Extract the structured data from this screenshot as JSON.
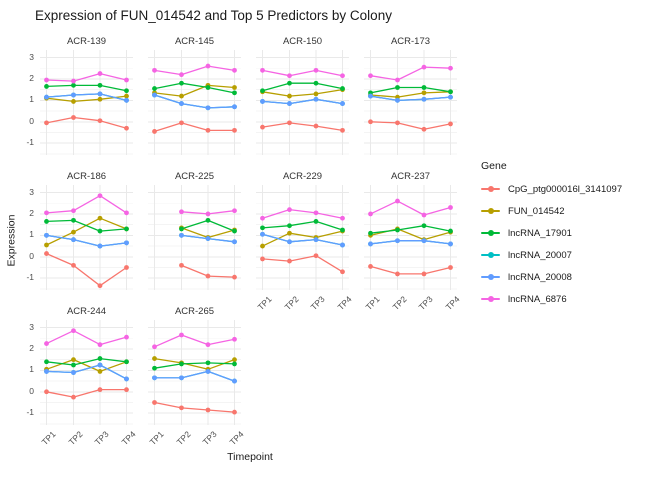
{
  "title": "Expression of FUN_014542 and Top 5 Predictors by Colony",
  "axes": {
    "x_label": "Timepoint",
    "y_label": "Expression",
    "x_ticks": [
      "TP1",
      "TP2",
      "TP3",
      "TP4"
    ],
    "y_ticks": [
      3,
      2,
      1,
      0,
      -1
    ]
  },
  "legend": {
    "title": "Gene"
  },
  "chart_data": {
    "type": "line",
    "title": "Expression of FUN_014542 and Top 5 Predictors by Colony",
    "xlabel": "Timepoint",
    "ylabel": "Expression",
    "x": [
      "TP1",
      "TP2",
      "TP3",
      "TP4"
    ],
    "ylim": [
      -1.55,
      3.35
    ],
    "grid": "on",
    "legend_position": "right",
    "genes": [
      {
        "name": "CpG_ptg000016l_3141097",
        "color": "#F8766D"
      },
      {
        "name": "FUN_014542",
        "color": "#B79F00"
      },
      {
        "name": "lncRNA_17901",
        "color": "#00BA38"
      },
      {
        "name": "lncRNA_20007",
        "color": "#00BFC4"
      },
      {
        "name": "lncRNA_20008",
        "color": "#619CFF"
      },
      {
        "name": "lncRNA_6876",
        "color": "#F564E3"
      }
    ],
    "facets": [
      {
        "colony": "ACR-139",
        "series": [
          {
            "name": "CpG_ptg000016l_3141097",
            "values": [
              -0.05,
              0.2,
              0.05,
              -0.3
            ]
          },
          {
            "name": "FUN_014542",
            "values": [
              1.1,
              0.95,
              1.05,
              1.2
            ]
          },
          {
            "name": "lncRNA_17901",
            "values": [
              1.65,
              1.7,
              1.7,
              1.45
            ]
          },
          {
            "name": "lncRNA_20007",
            "values": [
              1.15,
              1.25,
              1.3,
              1.0
            ]
          },
          {
            "name": "lncRNA_20008",
            "values": [
              1.15,
              1.25,
              1.3,
              1.0
            ]
          },
          {
            "name": "lncRNA_6876",
            "values": [
              1.95,
              1.9,
              2.25,
              1.95
            ]
          }
        ]
      },
      {
        "colony": "ACR-145",
        "series": [
          {
            "name": "CpG_ptg000016l_3141097",
            "values": [
              -0.45,
              -0.05,
              -0.4,
              -0.4
            ]
          },
          {
            "name": "FUN_014542",
            "values": [
              1.35,
              1.2,
              1.7,
              1.6
            ]
          },
          {
            "name": "lncRNA_17901",
            "values": [
              1.55,
              1.8,
              1.6,
              1.35
            ]
          },
          {
            "name": "lncRNA_20007",
            "values": [
              1.25,
              0.85,
              0.65,
              0.7
            ]
          },
          {
            "name": "lncRNA_20008",
            "values": [
              1.25,
              0.85,
              0.65,
              0.7
            ]
          },
          {
            "name": "lncRNA_6876",
            "values": [
              2.4,
              2.2,
              2.6,
              2.4
            ]
          }
        ]
      },
      {
        "colony": "ACR-150",
        "series": [
          {
            "name": "CpG_ptg000016l_3141097",
            "values": [
              -0.25,
              -0.05,
              -0.2,
              -0.4
            ]
          },
          {
            "name": "FUN_014542",
            "values": [
              1.4,
              1.2,
              1.3,
              1.5
            ]
          },
          {
            "name": "lncRNA_17901",
            "values": [
              1.45,
              1.8,
              1.8,
              1.55
            ]
          },
          {
            "name": "lncRNA_20007",
            "values": [
              0.95,
              0.85,
              1.05,
              0.85
            ]
          },
          {
            "name": "lncRNA_20008",
            "values": [
              0.95,
              0.85,
              1.05,
              0.85
            ]
          },
          {
            "name": "lncRNA_6876",
            "values": [
              2.4,
              2.15,
              2.4,
              2.15
            ]
          }
        ]
      },
      {
        "colony": "ACR-173",
        "series": [
          {
            "name": "CpG_ptg000016l_3141097",
            "values": [
              0.0,
              -0.05,
              -0.35,
              -0.1
            ]
          },
          {
            "name": "FUN_014542",
            "values": [
              1.25,
              1.15,
              1.35,
              1.4
            ]
          },
          {
            "name": "lncRNA_17901",
            "values": [
              1.35,
              1.6,
              1.6,
              1.4
            ]
          },
          {
            "name": "lncRNA_20007",
            "values": [
              1.2,
              1.0,
              1.05,
              1.15
            ]
          },
          {
            "name": "lncRNA_20008",
            "values": [
              1.2,
              1.0,
              1.05,
              1.15
            ]
          },
          {
            "name": "lncRNA_6876",
            "values": [
              2.15,
              1.95,
              2.55,
              2.5
            ]
          }
        ]
      },
      {
        "colony": "ACR-186",
        "series": [
          {
            "name": "CpG_ptg000016l_3141097",
            "values": [
              0.15,
              -0.4,
              -1.35,
              -0.5
            ]
          },
          {
            "name": "FUN_014542",
            "values": [
              0.55,
              1.15,
              1.8,
              1.3
            ]
          },
          {
            "name": "lncRNA_17901",
            "values": [
              1.65,
              1.7,
              1.2,
              1.3
            ]
          },
          {
            "name": "lncRNA_20007",
            "values": [
              1.0,
              0.8,
              0.5,
              0.65
            ]
          },
          {
            "name": "lncRNA_20008",
            "values": [
              1.0,
              0.8,
              0.5,
              0.65
            ]
          },
          {
            "name": "lncRNA_6876",
            "values": [
              2.05,
              2.15,
              2.85,
              2.05
            ]
          }
        ]
      },
      {
        "colony": "ACR-225",
        "series": [
          {
            "name": "CpG_ptg000016l_3141097",
            "values": [
              null,
              -0.4,
              -0.9,
              -0.95
            ]
          },
          {
            "name": "FUN_014542",
            "values": [
              null,
              1.35,
              0.9,
              1.25
            ]
          },
          {
            "name": "lncRNA_17901",
            "values": [
              null,
              1.3,
              1.7,
              1.2
            ]
          },
          {
            "name": "lncRNA_20007",
            "values": [
              null,
              1.0,
              0.85,
              0.7
            ]
          },
          {
            "name": "lncRNA_20008",
            "values": [
              null,
              1.0,
              0.85,
              0.7
            ]
          },
          {
            "name": "lncRNA_6876",
            "values": [
              null,
              2.1,
              2.0,
              2.15
            ]
          }
        ]
      },
      {
        "colony": "ACR-229",
        "series": [
          {
            "name": "CpG_ptg000016l_3141097",
            "values": [
              -0.1,
              -0.2,
              0.05,
              -0.7
            ]
          },
          {
            "name": "FUN_014542",
            "values": [
              0.5,
              1.1,
              0.9,
              1.2
            ]
          },
          {
            "name": "lncRNA_17901",
            "values": [
              1.35,
              1.45,
              1.65,
              1.25
            ]
          },
          {
            "name": "lncRNA_20007",
            "values": [
              1.05,
              0.7,
              0.8,
              0.55
            ]
          },
          {
            "name": "lncRNA_20008",
            "values": [
              1.05,
              0.7,
              0.8,
              0.55
            ]
          },
          {
            "name": "lncRNA_6876",
            "values": [
              1.8,
              2.2,
              2.05,
              1.8
            ]
          }
        ]
      },
      {
        "colony": "ACR-237",
        "series": [
          {
            "name": "CpG_ptg000016l_3141097",
            "values": [
              -0.45,
              -0.8,
              -0.8,
              -0.5
            ]
          },
          {
            "name": "FUN_014542",
            "values": [
              1.0,
              1.3,
              0.8,
              1.15
            ]
          },
          {
            "name": "lncRNA_17901",
            "values": [
              1.1,
              1.25,
              1.45,
              1.2
            ]
          },
          {
            "name": "lncRNA_20007",
            "values": [
              0.6,
              0.75,
              0.75,
              0.6
            ]
          },
          {
            "name": "lncRNA_20008",
            "values": [
              0.6,
              0.75,
              0.75,
              0.6
            ]
          },
          {
            "name": "lncRNA_6876",
            "values": [
              2.0,
              2.6,
              1.95,
              2.3
            ]
          }
        ]
      },
      {
        "colony": "ACR-244",
        "series": [
          {
            "name": "CpG_ptg000016l_3141097",
            "values": [
              0.0,
              -0.25,
              0.1,
              0.1
            ]
          },
          {
            "name": "FUN_014542",
            "values": [
              1.05,
              1.5,
              0.95,
              1.4
            ]
          },
          {
            "name": "lncRNA_17901",
            "values": [
              1.4,
              1.25,
              1.55,
              1.4
            ]
          },
          {
            "name": "lncRNA_20007",
            "values": [
              0.95,
              0.9,
              1.25,
              0.6
            ]
          },
          {
            "name": "lncRNA_20008",
            "values": [
              0.95,
              0.9,
              1.25,
              0.6
            ]
          },
          {
            "name": "lncRNA_6876",
            "values": [
              2.25,
              2.85,
              2.2,
              2.55
            ]
          }
        ]
      },
      {
        "colony": "ACR-265",
        "series": [
          {
            "name": "CpG_ptg000016l_3141097",
            "values": [
              -0.5,
              -0.75,
              -0.85,
              -0.95
            ]
          },
          {
            "name": "FUN_014542",
            "values": [
              1.55,
              1.35,
              1.05,
              1.5
            ]
          },
          {
            "name": "lncRNA_17901",
            "values": [
              1.1,
              1.3,
              1.35,
              1.3
            ]
          },
          {
            "name": "lncRNA_20007",
            "values": [
              0.65,
              0.65,
              0.95,
              0.5
            ]
          },
          {
            "name": "lncRNA_20008",
            "values": [
              0.65,
              0.65,
              0.95,
              0.5
            ]
          },
          {
            "name": "lncRNA_6876",
            "values": [
              2.1,
              2.65,
              2.2,
              2.45
            ]
          }
        ]
      }
    ],
    "colors": {
      "grid_major": "#e9e9e9",
      "grid_minor": "#f4f4f4",
      "axis_text": "#4d4d4d"
    }
  }
}
